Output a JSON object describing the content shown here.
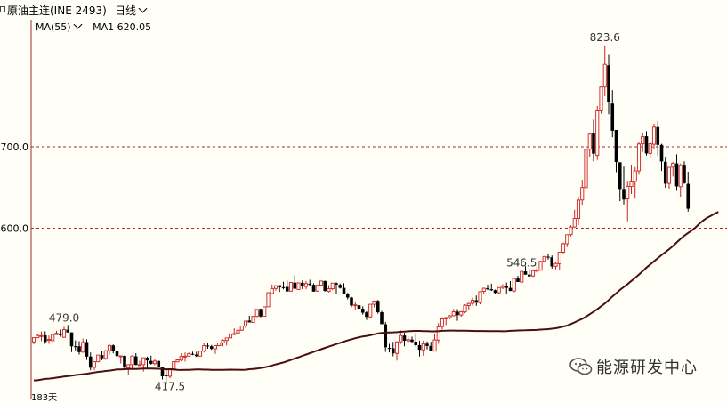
{
  "header": {
    "instrument_title": "原油主连(INE 2493)",
    "period_label": "日线"
  },
  "indicator": {
    "ma_label": "MA(55)",
    "ma1_label": "MA1",
    "ma1_value": "620.05"
  },
  "corner_label": "183天",
  "watermark": {
    "text": "能源研发中心"
  },
  "colors": {
    "up": "#cc1f1f",
    "down": "#000000",
    "ma_line": "#4a0f0f",
    "grid": "#a52a2a",
    "axis": "#a52a2a",
    "background": "#fffff7"
  },
  "chart_data": {
    "type": "candlestick",
    "price_axis": {
      "ticks": [
        600.0,
        700.0
      ],
      "tick_labels": [
        "600.0",
        "700.0"
      ],
      "ylim": [
        393,
        855
      ]
    },
    "annotations": [
      {
        "label": "479.0",
        "value": 479.0
      },
      {
        "label": "546.5",
        "value": 546.5
      },
      {
        "label": "417.5",
        "value": 417.5
      },
      {
        "label": "823.6",
        "value": 823.6
      }
    ],
    "ma55_last": 620.05,
    "ohlc": [
      [
        460.5,
        465.6,
        457.7,
        465.6
      ],
      [
        465.6,
        469.8,
        465.2,
        468.3
      ],
      [
        467.7,
        473.4,
        461.3,
        468.1
      ],
      [
        468.4,
        473.4,
        458.1,
        460.5
      ],
      [
        462.3,
        468.3,
        458.1,
        463.5
      ],
      [
        462.0,
        470.8,
        460.6,
        469.5
      ],
      [
        469.4,
        474.2,
        469.0,
        471.0
      ],
      [
        470.7,
        475.6,
        466.8,
        468.7
      ],
      [
        466.1,
        479.0,
        465.3,
        475.4
      ],
      [
        475.4,
        481.1,
        472.0,
        472.0
      ],
      [
        472.1,
        472.1,
        448.0,
        455.0
      ],
      [
        455.1,
        462.3,
        450.1,
        455.0
      ],
      [
        455.1,
        461.3,
        445.0,
        447.9
      ],
      [
        447.9,
        464.5,
        447.1,
        459.8
      ],
      [
        460.2,
        463.6,
        438.3,
        442.4
      ],
      [
        442.5,
        447.5,
        425.7,
        428.8
      ],
      [
        429.1,
        436.1,
        425.5,
        436.1
      ],
      [
        436.1,
        444.3,
        435.4,
        444.3
      ],
      [
        444.3,
        449.3,
        438.0,
        440.4
      ],
      [
        440.1,
        450.5,
        438.4,
        449.6
      ],
      [
        449.6,
        457.0,
        445.1,
        456.1
      ],
      [
        456.1,
        457.3,
        446.4,
        449.8
      ],
      [
        448.8,
        454.6,
        438.4,
        443.0
      ],
      [
        442.3,
        443.5,
        434.0,
        443.3
      ],
      [
        443.3,
        443.9,
        427.6,
        428.9
      ],
      [
        428.5,
        433.0,
        420.0,
        432.5
      ],
      [
        432.5,
        443.9,
        427.1,
        443.1
      ],
      [
        442.7,
        446.6,
        432.1,
        432.1
      ],
      [
        432.5,
        437.1,
        432.1,
        432.5
      ],
      [
        432.5,
        441.0,
        424.1,
        441.0
      ],
      [
        441.1,
        442.5,
        427.2,
        437.7
      ],
      [
        437.1,
        443.6,
        432.5,
        433.7
      ],
      [
        433.8,
        439.7,
        431.8,
        436.9
      ],
      [
        437.0,
        437.4,
        429.8,
        430.2
      ],
      [
        430.2,
        430.2,
        414.4,
        418.2
      ],
      [
        420.4,
        426.5,
        408.5,
        418.3
      ],
      [
        418.3,
        427.4,
        415.9,
        427.4
      ],
      [
        427.4,
        436.2,
        424.7,
        436.2
      ],
      [
        435.9,
        440.0,
        435.9,
        438.4
      ],
      [
        438.1,
        446.6,
        436.6,
        442.6
      ],
      [
        442.6,
        447.4,
        436.3,
        442.9
      ],
      [
        443.0,
        447.3,
        442.4,
        445.9
      ],
      [
        445.8,
        448.3,
        444.1,
        444.7
      ],
      [
        444.8,
        448.3,
        442.0,
        443.0
      ],
      [
        443.0,
        449.0,
        443.0,
        449.0
      ],
      [
        449.3,
        459.5,
        447.4,
        455.9
      ],
      [
        455.9,
        459.1,
        452.0,
        455.2
      ],
      [
        455.1,
        456.7,
        450.7,
        451.9
      ],
      [
        452.0,
        456.0,
        445.8,
        456.0
      ],
      [
        455.8,
        459.6,
        455.0,
        459.2
      ],
      [
        459.2,
        463.6,
        455.1,
        462.3
      ],
      [
        462.2,
        465.3,
        456.0,
        465.3
      ],
      [
        465.3,
        470.2,
        465.0,
        470.2
      ],
      [
        470.1,
        477.1,
        469.6,
        470.6
      ],
      [
        470.8,
        474.8,
        468.9,
        474.8
      ],
      [
        474.8,
        479.9,
        473.8,
        479.9
      ],
      [
        479.8,
        486.0,
        477.5,
        486.0
      ],
      [
        486.6,
        492.6,
        484.3,
        484.3
      ],
      [
        484.3,
        492.5,
        484.1,
        491.7
      ],
      [
        491.7,
        500.3,
        490.8,
        500.3
      ],
      [
        500.8,
        501.3,
        490.5,
        491.6
      ],
      [
        491.8,
        503.8,
        491.8,
        503.5
      ],
      [
        503.5,
        520.9,
        503.5,
        520.9
      ],
      [
        519.8,
        530.9,
        519.8,
        525.8
      ],
      [
        526.1,
        529.5,
        523.5,
        529.5
      ],
      [
        530.0,
        530.0,
        521.8,
        527.4
      ],
      [
        527.6,
        534.2,
        524.9,
        527.2
      ],
      [
        528.0,
        535.6,
        522.2,
        522.3
      ],
      [
        522.7,
        533.4,
        522.2,
        533.4
      ],
      [
        533.2,
        542.4,
        525.7,
        525.7
      ],
      [
        524.8,
        533.0,
        524.4,
        533.0
      ],
      [
        533.0,
        535.9,
        525.3,
        528.7
      ],
      [
        528.5,
        535.2,
        525.2,
        532.0
      ],
      [
        532.0,
        536.7,
        529.6,
        530.5
      ],
      [
        530.5,
        532.4,
        521.9,
        522.2
      ],
      [
        522.8,
        530.0,
        522.2,
        530.0
      ],
      [
        530.1,
        535.2,
        529.3,
        535.2
      ],
      [
        535.2,
        535.7,
        522.3,
        522.9
      ],
      [
        522.4,
        530.1,
        521.1,
        525.7
      ],
      [
        525.7,
        532.8,
        523.8,
        532.6
      ],
      [
        532.6,
        533.5,
        519.5,
        530.9
      ],
      [
        530.5,
        532.1,
        525.9,
        526.8
      ],
      [
        526.7,
        532.5,
        519.3,
        519.3
      ],
      [
        519.6,
        520.7,
        512.6,
        514.9
      ],
      [
        514.9,
        515.7,
        503.1,
        505.1
      ],
      [
        505.1,
        510.0,
        499.7,
        505.9
      ],
      [
        505.4,
        509.9,
        496.6,
        501.1
      ],
      [
        501.1,
        504.1,
        493.8,
        496.2
      ],
      [
        496.7,
        498.1,
        487.4,
        491.1
      ],
      [
        491.1,
        506.6,
        489.7,
        506.6
      ],
      [
        506.6,
        510.6,
        502.8,
        510.6
      ],
      [
        510.8,
        511.9,
        495.0,
        496.8
      ],
      [
        496.8,
        498.4,
        482.1,
        482.2
      ],
      [
        482.0,
        484.8,
        448.2,
        453.8
      ],
      [
        453.0,
        458.1,
        447.6,
        452.5
      ],
      [
        452.6,
        460.5,
        442.8,
        446.4
      ],
      [
        446.4,
        461.2,
        437.6,
        460.5
      ],
      [
        460.6,
        474.6,
        458.0,
        468.3
      ],
      [
        468.3,
        471.6,
        455.1,
        461.9
      ],
      [
        461.7,
        466.8,
        459.4,
        463.2
      ],
      [
        463.3,
        466.8,
        459.7,
        460.6
      ],
      [
        460.8,
        471.0,
        454.5,
        456.4
      ],
      [
        456.5,
        462.0,
        442.5,
        450.8
      ],
      [
        450.6,
        462.1,
        443.5,
        458.2
      ],
      [
        458.3,
        461.1,
        451.3,
        455.5
      ],
      [
        455.5,
        460.6,
        449.0,
        449.0
      ],
      [
        449.1,
        470.8,
        449.1,
        462.9
      ],
      [
        462.7,
        483.4,
        458.1,
        478.9
      ],
      [
        479.2,
        490.6,
        475.7,
        488.6
      ],
      [
        488.8,
        490.3,
        481.1,
        490.3
      ],
      [
        490.3,
        493.4,
        488.5,
        492.5
      ],
      [
        492.6,
        500.8,
        491.7,
        497.4
      ],
      [
        497.5,
        500.6,
        486.3,
        493.3
      ],
      [
        493.4,
        498.4,
        491.3,
        497.5
      ],
      [
        497.2,
        506.6,
        495.6,
        505.4
      ],
      [
        505.1,
        508.5,
        499.6,
        507.6
      ],
      [
        507.8,
        514.8,
        504.9,
        511.6
      ],
      [
        511.6,
        517.4,
        504.7,
        508.6
      ],
      [
        508.6,
        522.8,
        506.5,
        522.0
      ],
      [
        522.5,
        526.7,
        519.7,
        526.3
      ],
      [
        526.4,
        530.8,
        524.0,
        525.1
      ],
      [
        525.1,
        531.9,
        523.1,
        523.8
      ],
      [
        523.9,
        524.7,
        518.8,
        520.6
      ],
      [
        520.8,
        527.2,
        519.1,
        527.2
      ],
      [
        527.4,
        531.2,
        525.2,
        528.9
      ],
      [
        528.9,
        533.2,
        519.6,
        526.8
      ],
      [
        526.7,
        535.0,
        522.9,
        522.9
      ],
      [
        522.9,
        538.2,
        521.6,
        538.2
      ],
      [
        538.2,
        541.6,
        534.0,
        534.0
      ],
      [
        533.8,
        547.4,
        533.8,
        547.0
      ],
      [
        547.0,
        553.4,
        543.0,
        543.0
      ],
      [
        543.0,
        549.8,
        540.4,
        540.9
      ],
      [
        541.4,
        549.4,
        540.3,
        547.9
      ],
      [
        547.9,
        552.6,
        545.4,
        548.4
      ],
      [
        548.4,
        560.0,
        548.1,
        559.3
      ],
      [
        559.4,
        565.3,
        558.9,
        565.3
      ],
      [
        565.1,
        568.6,
        561.6,
        564.3
      ],
      [
        564.3,
        566.6,
        550.5,
        553.2
      ],
      [
        553.3,
        558.8,
        549.6,
        556.7
      ],
      [
        556.5,
        570.6,
        548.4,
        570.6
      ],
      [
        570.6,
        582.3,
        569.1,
        581.0
      ],
      [
        581.0,
        592.1,
        576.8,
        592.1
      ],
      [
        592.2,
        603.6,
        590.1,
        601.5
      ],
      [
        601.6,
        622.7,
        600.5,
        612.0
      ],
      [
        612.0,
        638.9,
        603.6,
        634.6
      ],
      [
        634.7,
        659.4,
        628.8,
        650.1
      ],
      [
        649.9,
        700.1,
        645.3,
        696.9
      ],
      [
        697.0,
        716.1,
        687.9,
        715.6
      ],
      [
        716.5,
        733.4,
        682.4,
        691.6
      ],
      [
        689.5,
        750.3,
        683.9,
        744.3
      ],
      [
        744.2,
        774.2,
        740.8,
        773.5
      ],
      [
        773.5,
        823.6,
        762.2,
        801.4
      ],
      [
        800.2,
        813.0,
        740.2,
        754.6
      ],
      [
        753.3,
        769.7,
        711.8,
        719.8
      ],
      [
        720.7,
        720.7,
        668.9,
        681.4
      ],
      [
        681.1,
        681.1,
        633.4,
        647.2
      ],
      [
        647.2,
        675.7,
        629.3,
        635.3
      ],
      [
        636.1,
        657.2,
        608.6,
        651.3
      ],
      [
        651.4,
        677.4,
        642.1,
        656.8
      ],
      [
        657.5,
        675.2,
        636.4,
        670.4
      ],
      [
        670.5,
        705.5,
        665.8,
        703.5
      ],
      [
        703.7,
        717.3,
        693.7,
        712.5
      ],
      [
        713.0,
        719.3,
        689.2,
        691.9
      ],
      [
        691.9,
        705.2,
        686.0,
        703.8
      ],
      [
        703.2,
        728.4,
        696.8,
        724.2
      ],
      [
        724.3,
        731.9,
        689.1,
        702.4
      ],
      [
        702.4,
        703.7,
        670.4,
        682.1
      ],
      [
        681.7,
        687.1,
        649.7,
        654.8
      ],
      [
        655.1,
        674.9,
        648.6,
        674.9
      ],
      [
        675.1,
        681.4,
        663.5,
        679.9
      ],
      [
        679.7,
        690.8,
        646.0,
        651.5
      ],
      [
        651.1,
        679.6,
        638.0,
        676.9
      ],
      [
        676.9,
        682.3,
        654.5,
        655.4
      ],
      [
        654.6,
        669.3,
        620.5,
        624.0
      ]
    ],
    "ma55": [
      413.2,
      413.4,
      414.2,
      415.0,
      415.4,
      415.9,
      416.5,
      417.2,
      417.9,
      418.5,
      419.1,
      419.7,
      420.3,
      420.8,
      421.4,
      422.1,
      422.9,
      423.7,
      424.1,
      424.7,
      425.2,
      425.8,
      426.7,
      426.6,
      426.9,
      427.1,
      427.4,
      427.3,
      427.5,
      427.8,
      427.8,
      427.7,
      427.6,
      427.5,
      427.3,
      426.8,
      426.9,
      426.6,
      426.1,
      425.9,
      426.1,
      426.2,
      426.4,
      426.6,
      426.6,
      426.4,
      426.4,
      426.2,
      426.1,
      426.1,
      426.2,
      426.3,
      426.4,
      426.3,
      426.3,
      426.2,
      426.3,
      426.9,
      427.3,
      427.7,
      428.4,
      429.2,
      430.2,
      431.5,
      432.8,
      434.0,
      435.2,
      436.8,
      438.3,
      440.0,
      441.6,
      443.3,
      444.9,
      446.6,
      448.3,
      450.0,
      451.5,
      453.1,
      454.7,
      456.2,
      457.8,
      459.3,
      460.9,
      462.3,
      463.6,
      464.9,
      466.1,
      467.1,
      467.8,
      468.7,
      469.7,
      470.7,
      471.5,
      471.8,
      472.0,
      472.1,
      472.4,
      472.8,
      473.1,
      473.5,
      473.8,
      473.9,
      473.9,
      473.7,
      473.6,
      473.4,
      473.4,
      473.6,
      474.0,
      474.1,
      474.3,
      474.3,
      474.2,
      474.1,
      474.1,
      474.0,
      473.9,
      473.8,
      473.8,
      473.8,
      473.7,
      473.7,
      473.6,
      473.6,
      473.5,
      473.6,
      474.0,
      474.2,
      474.4,
      474.6,
      474.7,
      474.9,
      475.0,
      475.1,
      475.5,
      475.8,
      476.1,
      476.6,
      477.2,
      478.1,
      479.2,
      480.5,
      482.3,
      484.4,
      486.6,
      488.8,
      491.4,
      494.4,
      497.5,
      500.7,
      504.1,
      507.7,
      511.7,
      516.3,
      520.1,
      524.2,
      527.8,
      531.5,
      535.3,
      539.0,
      543.1,
      547.3,
      551.7,
      555.6,
      559.4,
      563.4,
      567.2,
      570.7,
      574.3,
      578.2,
      582.6,
      587.0,
      590.9,
      594.3,
      597.4,
      601.1,
      605.6,
      609.6,
      612.8,
      615.2,
      617.9,
      620.05
    ]
  }
}
